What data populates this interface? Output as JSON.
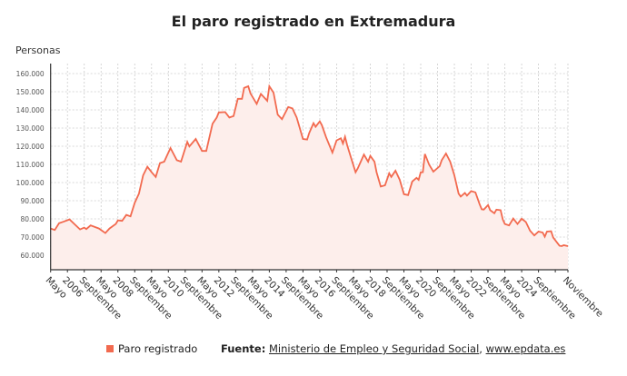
{
  "chart_data": {
    "type": "area",
    "title": "El paro registrado en Extremadura",
    "ylabel": "Personas",
    "xlabel": "",
    "ylim": [
      52000,
      165500
    ],
    "xlim": [
      "2005-05",
      "2025-11"
    ],
    "grid": true,
    "legend_position": "bottom",
    "colors": {
      "line": "#f26a4f",
      "fill": "#fdeeeb",
      "grid": "#cccccc",
      "axis": "#333333"
    },
    "yticks": [
      60000,
      70000,
      80000,
      90000,
      100000,
      110000,
      120000,
      130000,
      140000,
      150000,
      160000
    ],
    "ytick_labels": [
      "60.000",
      "70.000",
      "80.000",
      "90.000",
      "100.000",
      "110.000",
      "120.000",
      "130.000",
      "140.000",
      "150.000",
      "160.000"
    ],
    "xticks": [
      {
        "x": "2005-05",
        "label": "Mayo"
      },
      {
        "x": "2006-01",
        "label": "2006"
      },
      {
        "x": "2006-09",
        "label": "Septiembre"
      },
      {
        "x": "2007-05",
        "label": "Mayo"
      },
      {
        "x": "2008-01",
        "label": "2008"
      },
      {
        "x": "2008-09",
        "label": "Septiembre"
      },
      {
        "x": "2009-05",
        "label": "Mayo"
      },
      {
        "x": "2010-01",
        "label": "2010"
      },
      {
        "x": "2010-09",
        "label": "Septiembre"
      },
      {
        "x": "2011-05",
        "label": "Mayo"
      },
      {
        "x": "2012-01",
        "label": "2012"
      },
      {
        "x": "2012-09",
        "label": "Septiembre"
      },
      {
        "x": "2013-05",
        "label": "Mayo"
      },
      {
        "x": "2014-01",
        "label": "2014"
      },
      {
        "x": "2014-09",
        "label": "Septiembre"
      },
      {
        "x": "2015-05",
        "label": "Mayo"
      },
      {
        "x": "2016-01",
        "label": "2016"
      },
      {
        "x": "2016-09",
        "label": "Septiembre"
      },
      {
        "x": "2017-05",
        "label": "Mayo"
      },
      {
        "x": "2018-01",
        "label": "2018"
      },
      {
        "x": "2018-09",
        "label": "Septiembre"
      },
      {
        "x": "2019-05",
        "label": "Mayo"
      },
      {
        "x": "2020-01",
        "label": "2020"
      },
      {
        "x": "2020-09",
        "label": "Septiembre"
      },
      {
        "x": "2021-05",
        "label": "Mayo"
      },
      {
        "x": "2022-01",
        "label": "2022"
      },
      {
        "x": "2022-09",
        "label": "Septiembre"
      },
      {
        "x": "2023-05",
        "label": "Mayo"
      },
      {
        "x": "2024-01",
        "label": "2024"
      },
      {
        "x": "2024-09",
        "label": "Septiembre"
      },
      {
        "x": "2025-05",
        "label": ""
      },
      {
        "x": "2025-11",
        "label": "Noviembre"
      }
    ],
    "series": [
      {
        "name": "Paro registrado",
        "points": [
          [
            "2005-05",
            74700
          ],
          [
            "2005-07",
            73900
          ],
          [
            "2005-09",
            77600
          ],
          [
            "2005-11",
            78400
          ],
          [
            "2006-02",
            79700
          ],
          [
            "2006-07",
            74200
          ],
          [
            "2006-09",
            75200
          ],
          [
            "2006-10",
            74400
          ],
          [
            "2006-12",
            76400
          ],
          [
            "2007-04",
            74700
          ],
          [
            "2007-07",
            72200
          ],
          [
            "2007-09",
            74700
          ],
          [
            "2007-12",
            77200
          ],
          [
            "2008-01",
            79200
          ],
          [
            "2008-03",
            78900
          ],
          [
            "2008-05",
            82200
          ],
          [
            "2008-07",
            81400
          ],
          [
            "2008-09",
            88900
          ],
          [
            "2008-11",
            93900
          ],
          [
            "2009-01",
            104000
          ],
          [
            "2009-03",
            108700
          ],
          [
            "2009-05",
            105700
          ],
          [
            "2009-07",
            103100
          ],
          [
            "2009-09",
            110700
          ],
          [
            "2009-11",
            111500
          ],
          [
            "2010-02",
            119000
          ],
          [
            "2010-05",
            112300
          ],
          [
            "2010-07",
            111500
          ],
          [
            "2010-10",
            122400
          ],
          [
            "2010-11",
            119900
          ],
          [
            "2011-02",
            124000
          ],
          [
            "2011-05",
            117400
          ],
          [
            "2011-07",
            117400
          ],
          [
            "2011-10",
            132400
          ],
          [
            "2011-12",
            135800
          ],
          [
            "2012-01",
            138600
          ],
          [
            "2012-04",
            138800
          ],
          [
            "2012-06",
            135800
          ],
          [
            "2012-08",
            136600
          ],
          [
            "2012-10",
            146100
          ],
          [
            "2012-12",
            146100
          ],
          [
            "2013-01",
            152100
          ],
          [
            "2013-03",
            153000
          ],
          [
            "2013-04",
            149100
          ],
          [
            "2013-07",
            143300
          ],
          [
            "2013-09",
            148800
          ],
          [
            "2013-12",
            145000
          ],
          [
            "2014-01",
            153000
          ],
          [
            "2014-03",
            149500
          ],
          [
            "2014-05",
            137400
          ],
          [
            "2014-07",
            134900
          ],
          [
            "2014-10",
            141600
          ],
          [
            "2014-12",
            140800
          ],
          [
            "2015-02",
            135800
          ],
          [
            "2015-05",
            124000
          ],
          [
            "2015-07",
            123700
          ],
          [
            "2015-08",
            127300
          ],
          [
            "2015-10",
            132700
          ],
          [
            "2015-11",
            130700
          ],
          [
            "2016-01",
            133700
          ],
          [
            "2016-02",
            131600
          ],
          [
            "2016-04",
            124900
          ],
          [
            "2016-07",
            116500
          ],
          [
            "2016-09",
            123200
          ],
          [
            "2016-11",
            124400
          ],
          [
            "2016-12",
            121500
          ],
          [
            "2017-01",
            125200
          ],
          [
            "2017-02",
            120700
          ],
          [
            "2017-04",
            113200
          ],
          [
            "2017-06",
            105700
          ],
          [
            "2017-07",
            107700
          ],
          [
            "2017-10",
            115400
          ],
          [
            "2017-12",
            111500
          ],
          [
            "2018-01",
            114700
          ],
          [
            "2018-03",
            111500
          ],
          [
            "2018-04",
            105700
          ],
          [
            "2018-06",
            97800
          ],
          [
            "2018-08",
            98500
          ],
          [
            "2018-10",
            105100
          ],
          [
            "2018-11",
            103100
          ],
          [
            "2019-01",
            106500
          ],
          [
            "2019-03",
            101500
          ],
          [
            "2019-05",
            93600
          ],
          [
            "2019-07",
            93100
          ],
          [
            "2019-09",
            100600
          ],
          [
            "2019-11",
            102600
          ],
          [
            "2019-12",
            101500
          ],
          [
            "2020-01",
            105700
          ],
          [
            "2020-02",
            105700
          ],
          [
            "2020-03",
            115700
          ],
          [
            "2020-05",
            109800
          ],
          [
            "2020-07",
            106000
          ],
          [
            "2020-10",
            109000
          ],
          [
            "2020-11",
            112300
          ],
          [
            "2021-01",
            116000
          ],
          [
            "2021-03",
            111500
          ],
          [
            "2021-05",
            104000
          ],
          [
            "2021-07",
            93900
          ],
          [
            "2021-08",
            92300
          ],
          [
            "2021-10",
            94300
          ],
          [
            "2021-11",
            92800
          ],
          [
            "2022-01",
            95300
          ],
          [
            "2022-03",
            94600
          ],
          [
            "2022-05",
            88100
          ],
          [
            "2022-06",
            85300
          ],
          [
            "2022-07",
            85100
          ],
          [
            "2022-09",
            87600
          ],
          [
            "2022-10",
            84800
          ],
          [
            "2022-12",
            83100
          ],
          [
            "2023-01",
            85100
          ],
          [
            "2023-03",
            84800
          ],
          [
            "2023-04",
            79700
          ],
          [
            "2023-05",
            77200
          ],
          [
            "2023-07",
            76400
          ],
          [
            "2023-09",
            80200
          ],
          [
            "2023-11",
            77200
          ],
          [
            "2024-01",
            80100
          ],
          [
            "2024-03",
            78300
          ],
          [
            "2024-05",
            73500
          ],
          [
            "2024-07",
            70900
          ],
          [
            "2024-09",
            73000
          ],
          [
            "2024-11",
            72500
          ],
          [
            "2024-12",
            70200
          ],
          [
            "2025-01",
            73000
          ],
          [
            "2025-03",
            73200
          ],
          [
            "2025-04",
            69700
          ],
          [
            "2025-07",
            65200
          ],
          [
            "2025-08",
            65000
          ],
          [
            "2025-09",
            65500
          ],
          [
            "2025-11",
            65000
          ]
        ]
      }
    ]
  },
  "legend": {
    "series_label": "Paro registrado",
    "source_prefix": "Fuente:",
    "source_name": "Ministerio de Empleo y Seguridad Social",
    "separator": ",",
    "source_site": "www.epdata.es"
  }
}
